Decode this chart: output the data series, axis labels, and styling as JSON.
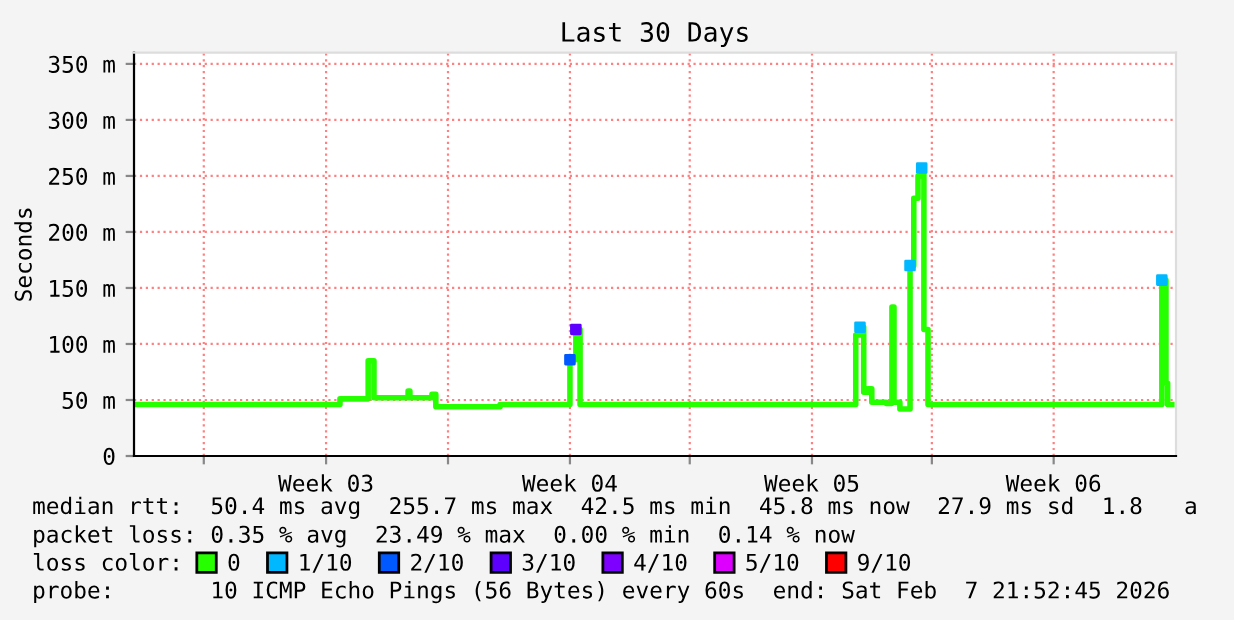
{
  "chart_data": {
    "type": "step",
    "title": "Last 30 Days",
    "ylabel": "Seconds",
    "xlim": [
      "2026-01-08T21:52",
      "2026-02-07T21:52"
    ],
    "xticks": [
      {
        "value": "2026-01-10T22:05",
        "label": null
      },
      {
        "value": "2026-01-14T10:35",
        "label": "Week 03"
      },
      {
        "value": "2026-01-17T22:50",
        "label": null
      },
      {
        "value": "2026-01-21T11:05",
        "label": "Week 04"
      },
      {
        "value": "2026-01-24T21:52",
        "label": null
      },
      {
        "value": "2026-01-28T10:20",
        "label": "Week 05"
      },
      {
        "value": "2026-01-31T21:10",
        "label": null
      },
      {
        "value": "2026-02-04T09:20",
        "label": "Week 06"
      }
    ],
    "ylim": [
      0,
      360
    ],
    "yticks": [
      0,
      {
        "value": 50,
        "label": "50 m"
      },
      {
        "value": 100,
        "label": "100 m"
      },
      {
        "value": 150,
        "label": "150 m"
      },
      {
        "value": 200,
        "label": "200 m"
      },
      {
        "value": 250,
        "label": "250 m"
      },
      {
        "value": 300,
        "label": "300 m"
      },
      {
        "value": 350,
        "label": "350 m"
      }
    ],
    "grid": true,
    "legend": "bottom",
    "legend_title": "loss color:",
    "series": [
      {
        "name": "0",
        "color": "#26ff00",
        "x": [
          "2026-01-08T21:52",
          "2026-01-14T20:10",
          "2026-01-15T15:40",
          "2026-01-15T19:40",
          "2026-01-16T19:15",
          "2026-01-16T20:30",
          "2026-01-17T11:45",
          "2026-01-17T14:25",
          "2026-01-19T10:50",
          "2026-01-21T11:05",
          "2026-01-21T15:10",
          "2026-01-21T18:05",
          "2026-01-29T16:35",
          "2026-01-29T19:30",
          "2026-01-29T22:05",
          "2026-01-30T01:00",
          "2026-01-30T03:40",
          "2026-01-30T13:30",
          "2026-01-30T17:35",
          "2026-01-30T19:00",
          "2026-01-30T23:05",
          "2026-01-31T06:05",
          "2026-01-31T08:40",
          "2026-01-31T11:35",
          "2026-01-31T14:10",
          "2026-01-31T15:40",
          "2026-01-31T18:30",
          "2026-02-07T12:05",
          "2026-02-07T14:55",
          "2026-02-07T16:05",
          "2026-02-07T19:00"
        ],
        "values": [
          46,
          51,
          85,
          52,
          58,
          52,
          55,
          44,
          46,
          86,
          113,
          46,
          108,
          115,
          57,
          60,
          48,
          47,
          133,
          48,
          42,
          170,
          230,
          250,
          257,
          113,
          46,
          157,
          65,
          46,
          46
        ]
      },
      {
        "name": "1/10",
        "color": "#00b8ff",
        "type": "scatter",
        "x": [
          "2026-01-29T19:30",
          "2026-01-31T06:05",
          "2026-01-31T14:10",
          "2026-02-07T12:05"
        ],
        "values": [
          115,
          170,
          257,
          157
        ]
      },
      {
        "name": "2/10",
        "color": "#0059ff",
        "type": "scatter",
        "x": [
          "2026-01-21T11:05"
        ],
        "values": [
          86
        ]
      },
      {
        "name": "3/10",
        "color": "#5e00ff",
        "type": "scatter",
        "x": [
          "2026-01-21T15:10"
        ],
        "values": [
          113
        ]
      },
      {
        "name": "4/10",
        "color": "#7e00ff",
        "type": "scatter"
      },
      {
        "name": "5/10",
        "color": "#dd00ff",
        "type": "scatter"
      },
      {
        "name": "9/10",
        "color": "#ff0000",
        "type": "scatter"
      }
    ],
    "annotations": [
      "median rtt:  50.4 ms avg  255.7 ms max  42.5 ms min  45.8 ms now  27.9 ms sd  1.8   a",
      "packet loss: 0.35 % avg  23.49 % max  0.00 % min  0.14 % now",
      "probe:       10 ICMP Echo Pings (56 Bytes) every 60s  end: Sat Feb  7 21:52:45 2026"
    ]
  }
}
